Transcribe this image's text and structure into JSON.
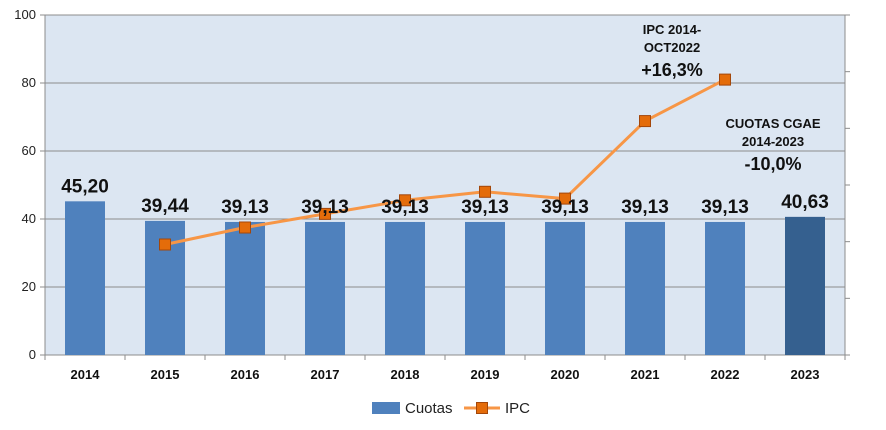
{
  "chart_data": {
    "type": "bar",
    "title": "",
    "xlabel": "",
    "ylabel": "",
    "ylim": [
      0,
      100
    ],
    "yticks": [
      0,
      20,
      40,
      60,
      80,
      100
    ],
    "grid": true,
    "legend": "bottom",
    "categories": [
      "2014",
      "2015",
      "2016",
      "2017",
      "2018",
      "2019",
      "2020",
      "2021",
      "2022",
      "2023"
    ],
    "series": [
      {
        "name": "Cuotas",
        "type": "bar",
        "color": "#4f81bd",
        "highlight_color": "#35608f",
        "highlight_index": 9,
        "values": [
          45.2,
          39.44,
          39.13,
          39.13,
          39.13,
          39.13,
          39.13,
          39.13,
          39.13,
          40.63
        ],
        "labels": [
          "45,20",
          "39,44",
          "39,13",
          "39,13",
          "39,13",
          "39,13",
          "39,13",
          "39,13",
          "39,13",
          "40,63"
        ]
      },
      {
        "name": "IPC",
        "type": "line",
        "color": "#f79646",
        "marker_color": "#e46c0a",
        "values": [
          null,
          32.5,
          37.5,
          41.5,
          45.5,
          48.0,
          46.0,
          68.8,
          81.0,
          null
        ]
      }
    ],
    "annotations": [
      {
        "lines": [
          "IPC 2014-",
          "OCT2022"
        ],
        "value": "+16,3%"
      },
      {
        "lines": [
          "CUOTAS CGAE",
          "2014-2023"
        ],
        "value": "-10,0%"
      }
    ]
  }
}
